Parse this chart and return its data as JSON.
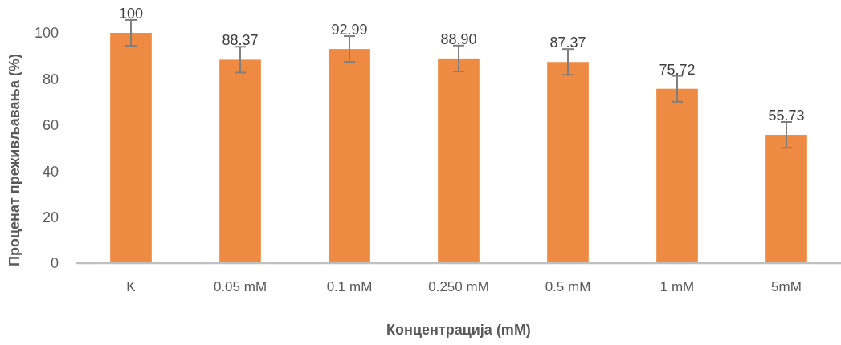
{
  "chart_data": {
    "type": "bar",
    "categories": [
      "K",
      "0.05 mM",
      "0.1 mM",
      "0.250 mM",
      "0.5 mM",
      "1 mM",
      "5mM"
    ],
    "values": [
      100,
      88.37,
      92.99,
      88.9,
      87.37,
      75.72,
      55.73
    ],
    "value_labels": [
      "100",
      "88.37",
      "92.99",
      "88.90",
      "87.37",
      "75.72",
      "55.73"
    ],
    "errors": [
      5.6,
      5.6,
      5.6,
      5.6,
      5.6,
      5.6,
      5.6
    ],
    "color": "#ef8a42",
    "xlabel": "Концентрација (mM)",
    "ylabel": "Проценат преживљавања (%)",
    "ylim": [
      0,
      100
    ],
    "yticks": [
      0,
      20,
      40,
      60,
      80,
      100
    ]
  }
}
